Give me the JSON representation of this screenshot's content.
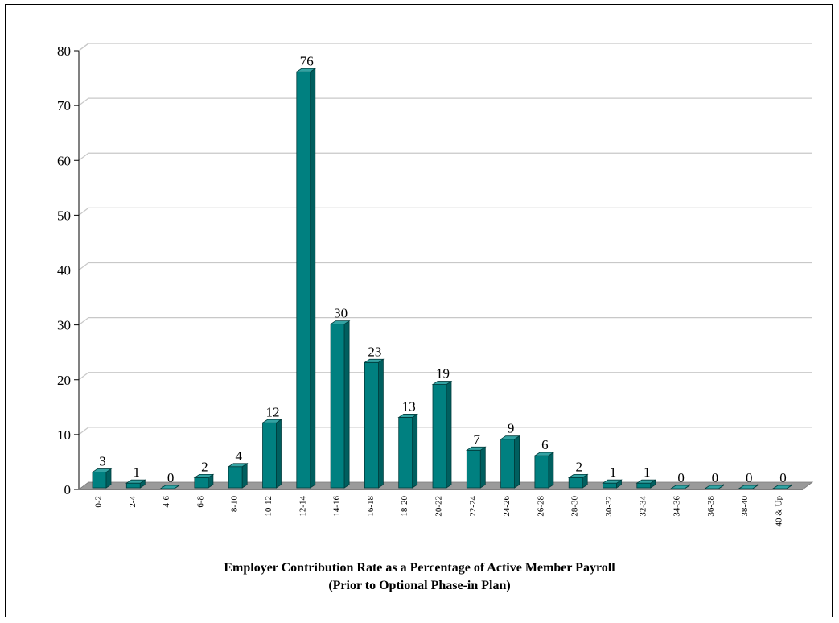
{
  "chart_data": {
    "type": "bar",
    "title": "Employer  Contribution  Rate as a Percentage of Active Member  Payroll",
    "subtitle": "(Prior to Optional Phase-in Plan)",
    "categories": [
      "0-2",
      "2-4",
      "4-6",
      "6-8",
      "8-10",
      "10-12",
      "12-14",
      "14-16",
      "16-18",
      "18-20",
      "20-22",
      "22-24",
      "24-26",
      "26-28",
      "28-30",
      "30-32",
      "32-34",
      "34-36",
      "36-38",
      "38-40",
      "40 & Up"
    ],
    "values": [
      3,
      1,
      0,
      2,
      4,
      12,
      76,
      30,
      23,
      13,
      19,
      7,
      9,
      6,
      2,
      1,
      1,
      0,
      0,
      0,
      0
    ],
    "ylim": [
      0,
      80
    ],
    "yticks": [
      0,
      10,
      20,
      30,
      40,
      50,
      60,
      70,
      80
    ],
    "grid": true,
    "colors": {
      "bar_front": "#008080",
      "bar_side": "#005f5f",
      "bar_top": "#33a3a3",
      "floor": "#9a9a9a",
      "grid": "#c8c8c8"
    }
  }
}
